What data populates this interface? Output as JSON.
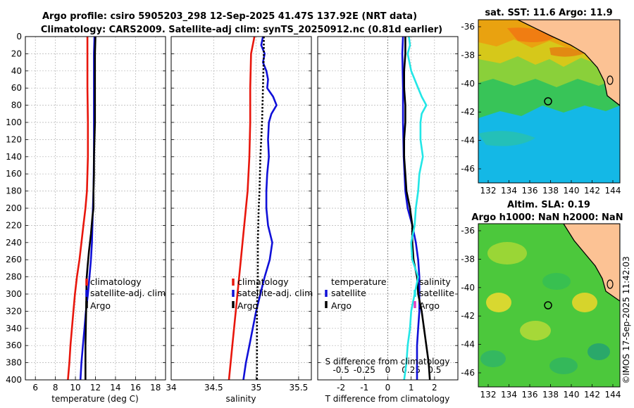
{
  "header": {
    "line1": "Argo profile: csiro 5905203_298 12-Sep-2025 41.47S 137.92E (NRT data)",
    "line2": "Climatology: CARS2009. Satellite-adj clim: synTS_20250912.nc (0.81d earlier)"
  },
  "stamp": "©IMOS 17-Sep-2025 11:42:03",
  "colors": {
    "argo": "#000000",
    "clim": "#e8160c",
    "sat": "#1010d8",
    "diffS": "#22e6e6",
    "grid": "#b4b4b4"
  },
  "chart_data": [
    {
      "type": "line",
      "title": "",
      "xlabel": "temperature (deg C)",
      "ylabel": "",
      "xlim": [
        5,
        19
      ],
      "ylim": [
        400,
        0
      ],
      "xticks": [
        6,
        8,
        10,
        12,
        14,
        16,
        18
      ],
      "yticks": [
        0,
        20,
        40,
        60,
        80,
        100,
        120,
        140,
        160,
        180,
        200,
        220,
        240,
        260,
        280,
        300,
        320,
        340,
        360,
        380,
        400
      ],
      "grid": true,
      "legend": {
        "location": "right-middle",
        "entries": [
          "climatology",
          "satellite-adj. clim",
          "Argo"
        ]
      },
      "series": [
        {
          "name": "climatology",
          "color": "#e8160c",
          "dash": false,
          "depth": [
            0,
            20,
            60,
            100,
            140,
            180,
            200,
            220,
            240,
            260,
            280,
            300,
            320,
            340,
            360,
            380,
            400
          ],
          "values": [
            11.2,
            11.2,
            11.2,
            11.25,
            11.25,
            11.15,
            11.0,
            10.8,
            10.6,
            10.4,
            10.15,
            9.95,
            9.8,
            9.65,
            9.5,
            9.4,
            9.25
          ]
        },
        {
          "name": "satellite-adj. clim",
          "color": "#1010d8",
          "dash": false,
          "depth": [
            0,
            20,
            60,
            100,
            140,
            180,
            200,
            220,
            240,
            260,
            280,
            300,
            320,
            340,
            360,
            380,
            400
          ],
          "values": [
            11.9,
            11.85,
            11.85,
            11.85,
            11.85,
            11.8,
            11.75,
            11.7,
            11.65,
            11.55,
            11.4,
            11.25,
            11.05,
            10.9,
            10.75,
            10.6,
            10.5
          ]
        },
        {
          "name": "Argo",
          "color": "#000000",
          "dash": false,
          "depth": [
            0,
            20,
            60,
            100,
            120,
            140,
            160,
            180,
            200,
            210,
            230,
            250,
            270,
            285,
            300,
            330,
            360,
            380,
            400
          ],
          "values": [
            12.0,
            11.95,
            11.95,
            11.95,
            11.9,
            11.85,
            11.85,
            11.8,
            11.8,
            11.7,
            11.55,
            11.35,
            11.2,
            11.1,
            11.1,
            11.05,
            11.0,
            11.0,
            11.0
          ]
        }
      ]
    },
    {
      "type": "line",
      "title": "",
      "xlabel": "salinity",
      "ylabel": "",
      "xlim": [
        34,
        35.65
      ],
      "ylim": [
        400,
        0
      ],
      "xticks": [
        34,
        34.5,
        35,
        35.5
      ],
      "grid": true,
      "legend": {
        "location": "right-middle",
        "entries": [
          "climatology",
          "satellite-adj. clim",
          "Argo"
        ]
      },
      "series": [
        {
          "name": "climatology",
          "color": "#e8160c",
          "dash": false,
          "depth": [
            0,
            20,
            60,
            100,
            140,
            180,
            200,
            240,
            280,
            320,
            360,
            400
          ],
          "values": [
            34.98,
            34.94,
            34.93,
            34.93,
            34.92,
            34.9,
            34.88,
            34.84,
            34.8,
            34.76,
            34.72,
            34.68
          ]
        },
        {
          "name": "satellite-adj. clim",
          "color": "#1010d8",
          "dash": false,
          "depth": [
            0,
            10,
            20,
            30,
            40,
            50,
            60,
            70,
            80,
            90,
            100,
            120,
            140,
            160,
            180,
            200,
            220,
            240,
            260,
            280,
            300,
            320,
            340,
            360,
            380,
            400
          ],
          "values": [
            35.08,
            35.06,
            35.1,
            35.08,
            35.12,
            35.14,
            35.13,
            35.2,
            35.24,
            35.18,
            35.15,
            35.14,
            35.15,
            35.13,
            35.12,
            35.12,
            35.14,
            35.19,
            35.16,
            35.1,
            35.05,
            35.0,
            34.96,
            34.92,
            34.88,
            34.85
          ]
        },
        {
          "name": "Argo",
          "color": "#000000",
          "dash": true,
          "depth": [
            0,
            20,
            60,
            100,
            140,
            180,
            200,
            240,
            280,
            320,
            360,
            400
          ],
          "values": [
            35.09,
            35.09,
            35.08,
            35.07,
            35.05,
            35.04,
            35.03,
            35.02,
            35.02,
            35.01,
            35.01,
            35.01
          ]
        }
      ]
    },
    {
      "type": "line",
      "title": "",
      "xlabel": "T difference from climatology",
      "xlabel2": "S difference from climatology",
      "ylabel": "",
      "xlim": [
        -3,
        3
      ],
      "ylim": [
        400,
        0
      ],
      "xticks": [
        -2,
        -1,
        0,
        1,
        2
      ],
      "xticks_salinity": [
        "-0.5",
        "-0.25",
        "0",
        "0.25",
        "0.5"
      ],
      "grid": true,
      "zero_line": true,
      "legend_left": {
        "title": "temperature",
        "entries": [
          "satellite",
          "Argo"
        ]
      },
      "legend_right": {
        "title": "salinity",
        "entries": [
          "satellite",
          "Argo"
        ]
      },
      "series": [
        {
          "name": "T satellite",
          "color": "#1010d8",
          "dash": false,
          "depth": [
            0,
            20,
            60,
            100,
            140,
            180,
            200,
            220,
            240,
            260,
            280,
            300,
            320,
            340,
            360,
            380,
            400
          ],
          "values": [
            0.65,
            0.62,
            0.65,
            0.65,
            0.68,
            0.75,
            0.85,
            1.05,
            1.2,
            1.3,
            1.35,
            1.35,
            1.35,
            1.3,
            1.25,
            1.25,
            1.25
          ]
        },
        {
          "name": "T Argo",
          "color": "#000000",
          "dash": false,
          "depth": [
            0,
            20,
            40,
            60,
            80,
            100,
            120,
            140,
            160,
            180,
            200,
            220,
            240,
            260,
            280,
            300,
            320,
            340,
            360,
            380,
            400
          ],
          "values": [
            0.75,
            0.75,
            0.7,
            0.7,
            0.75,
            0.75,
            0.7,
            0.7,
            0.75,
            0.8,
            0.95,
            1.05,
            1.05,
            1.1,
            1.25,
            1.3,
            1.45,
            1.55,
            1.65,
            1.75,
            1.8
          ]
        },
        {
          "name": "S satellite",
          "color": "#22e6e6",
          "dash": false,
          "depth": [
            0,
            10,
            20,
            40,
            60,
            70,
            80,
            90,
            100,
            120,
            140,
            160,
            180,
            200,
            220,
            240,
            260,
            280,
            300,
            320,
            340,
            360,
            380,
            400
          ],
          "values": [
            0.9,
            0.95,
            0.85,
            1.0,
            1.3,
            1.45,
            1.65,
            1.45,
            1.4,
            1.4,
            1.5,
            1.35,
            1.3,
            1.2,
            1.15,
            1.0,
            1.05,
            1.3,
            1.15,
            1.0,
            0.95,
            0.85,
            0.8,
            0.7
          ]
        }
      ]
    }
  ],
  "maps": [
    {
      "title": "sat. SST: 11.6 Argo: 11.9",
      "lon_ticks": [
        "132",
        "134",
        "136",
        "138",
        "140",
        "142",
        "144"
      ],
      "lat_ticks": [
        "-36",
        "-38",
        "-40",
        "-42",
        "-44",
        "-46"
      ]
    },
    {
      "title_line1": "Altim. SLA: 0.19",
      "title_line2": "Argo h1000: NaN h2000: NaN",
      "lon_ticks": [
        "132",
        "134",
        "136",
        "138",
        "140",
        "142",
        "144"
      ],
      "lat_ticks": [
        "-36",
        "-38",
        "-40",
        "-42",
        "-44",
        "-46"
      ]
    }
  ]
}
